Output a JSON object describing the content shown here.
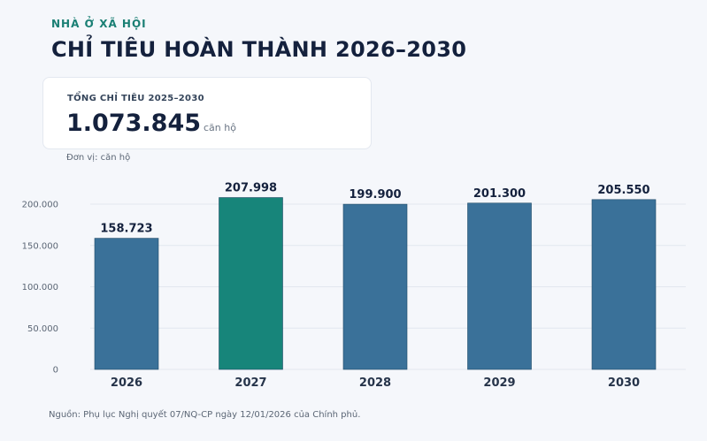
{
  "header": {
    "kicker": "NHÀ Ở XÃ HỘI",
    "title": "CHỈ TIÊU HOÀN THÀNH 2026–2030"
  },
  "summary": {
    "label": "TỔNG CHỈ TIÊU 2025–2030",
    "value": "1.073.845",
    "unit": "căn hộ"
  },
  "unit_note": "Đơn vị: căn hộ",
  "source": "Nguồn: Phụ lục Nghị quyết 07/NQ-CP ngày 12/01/2026 của Chính phủ.",
  "colors": {
    "bar": "#3a7199",
    "highlight": "#17857a",
    "grid": "#e2e7ef"
  },
  "chart_data": {
    "type": "bar",
    "categories": [
      "2026",
      "2027",
      "2028",
      "2029",
      "2030"
    ],
    "values": [
      158723,
      207998,
      199900,
      201300,
      205550
    ],
    "value_labels": [
      "158.723",
      "207.998",
      "199.900",
      "201.300",
      "205.550"
    ],
    "highlight_index": 1,
    "ylim": [
      0,
      200000
    ],
    "yticks": [
      0,
      50000,
      100000,
      150000,
      200000
    ],
    "ytick_labels": [
      "0",
      "50.000",
      "100.000",
      "150.000",
      "200.000"
    ],
    "grid": true,
    "title": "",
    "xlabel": "",
    "ylabel": ""
  }
}
